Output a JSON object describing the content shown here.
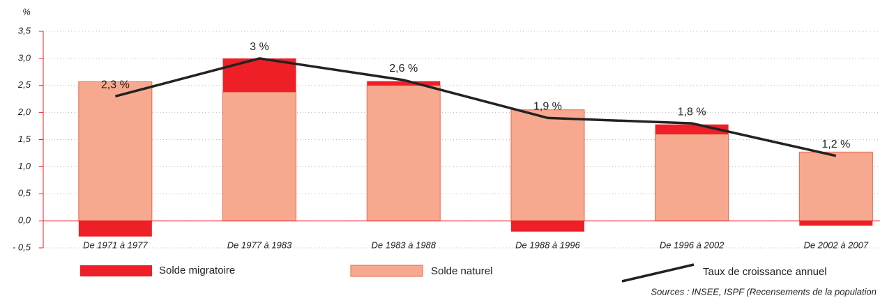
{
  "chart_data": {
    "type": "bar-line",
    "y_label": "%",
    "categories": [
      "De 1971 à 1977",
      "De 1977 à 1983",
      "De 1983 à 1988",
      "De 1988 à 1996",
      "De 1996 à 2002",
      "De 2002 à 2007"
    ],
    "series": [
      {
        "name": "Solde naturel",
        "color": "#f7a98f",
        "values": [
          2.57,
          2.38,
          2.5,
          2.05,
          1.6,
          1.27
        ]
      },
      {
        "name": "Solde migratoire",
        "color": "#ee1f26",
        "values": [
          -0.29,
          0.62,
          0.08,
          -0.2,
          0.18,
          -0.09
        ]
      },
      {
        "name": "Taux de croissance annuel",
        "color": "#222222",
        "type": "line",
        "values": [
          2.3,
          3,
          2.6,
          1.9,
          1.8,
          1.2
        ],
        "value_labels": [
          "2,3 %",
          "3 %",
          "2,6 %",
          "1,9 %",
          "1,8 %",
          "1,2 %"
        ]
      }
    ],
    "ylim": [
      -0.5,
      3.5
    ],
    "yticks": [
      {
        "value": -0.5,
        "label": "- 0,5"
      },
      {
        "value": 0,
        "label": "0,0"
      },
      {
        "value": 0.5,
        "label": "0,5"
      },
      {
        "value": 1,
        "label": "1,0"
      },
      {
        "value": 1.5,
        "label": "1,5"
      },
      {
        "value": 2,
        "label": "2,0"
      },
      {
        "value": 2.5,
        "label": "2,5"
      },
      {
        "value": 3,
        "label": "3,0"
      },
      {
        "value": 3.5,
        "label": "3,5"
      }
    ],
    "grid": true,
    "source": "Sources : INSEE, ISPF (Recensements de la population"
  }
}
